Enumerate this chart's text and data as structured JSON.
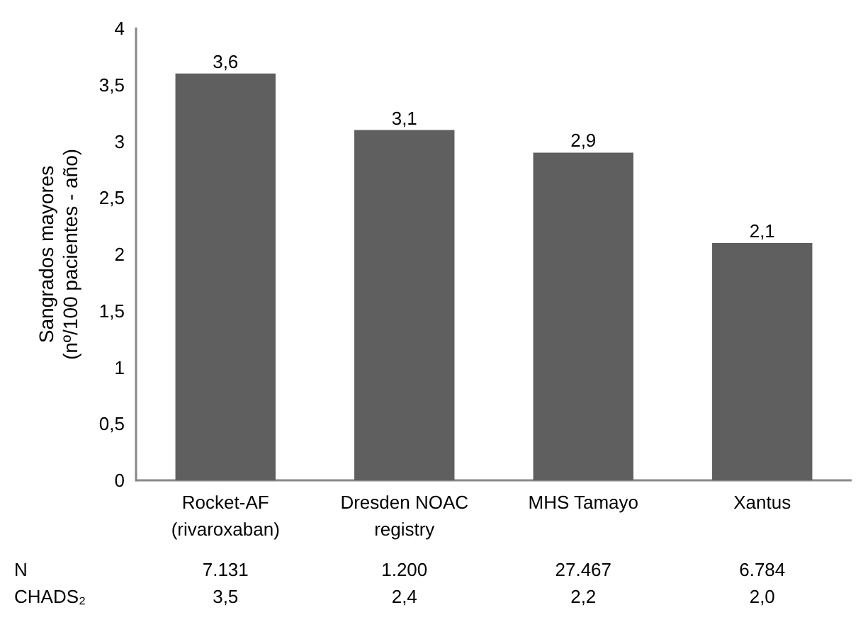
{
  "chart_data": {
    "type": "bar",
    "ylabel": "Sangrados mayores\n(nº/100 pacientes - año)",
    "categories": [
      "Rocket-AF\n(rivaroxaban)",
      "Dresden NOAC\nregistry",
      "MHS Tamayo",
      "Xantus"
    ],
    "values": [
      3.6,
      3.1,
      2.9,
      2.1
    ],
    "value_labels": [
      "3,6",
      "3,1",
      "2,9",
      "2,1"
    ],
    "color": "#5f5f5f",
    "ylim": [
      0,
      4
    ],
    "yticks": [
      0,
      {
        "value": 0.5,
        "label": "0,5"
      },
      1,
      {
        "value": 1.5,
        "label": "1,5"
      },
      2,
      {
        "value": 2.5,
        "label": "2,5"
      },
      3,
      {
        "value": 3.5,
        "label": "3,5"
      },
      4
    ],
    "grid": false,
    "annotations": [
      "N",
      "7.131",
      "1.200",
      "27.467",
      "6.784",
      "CHADS₂",
      "3,5",
      "2,4",
      "2,2",
      "2,0"
    ]
  }
}
